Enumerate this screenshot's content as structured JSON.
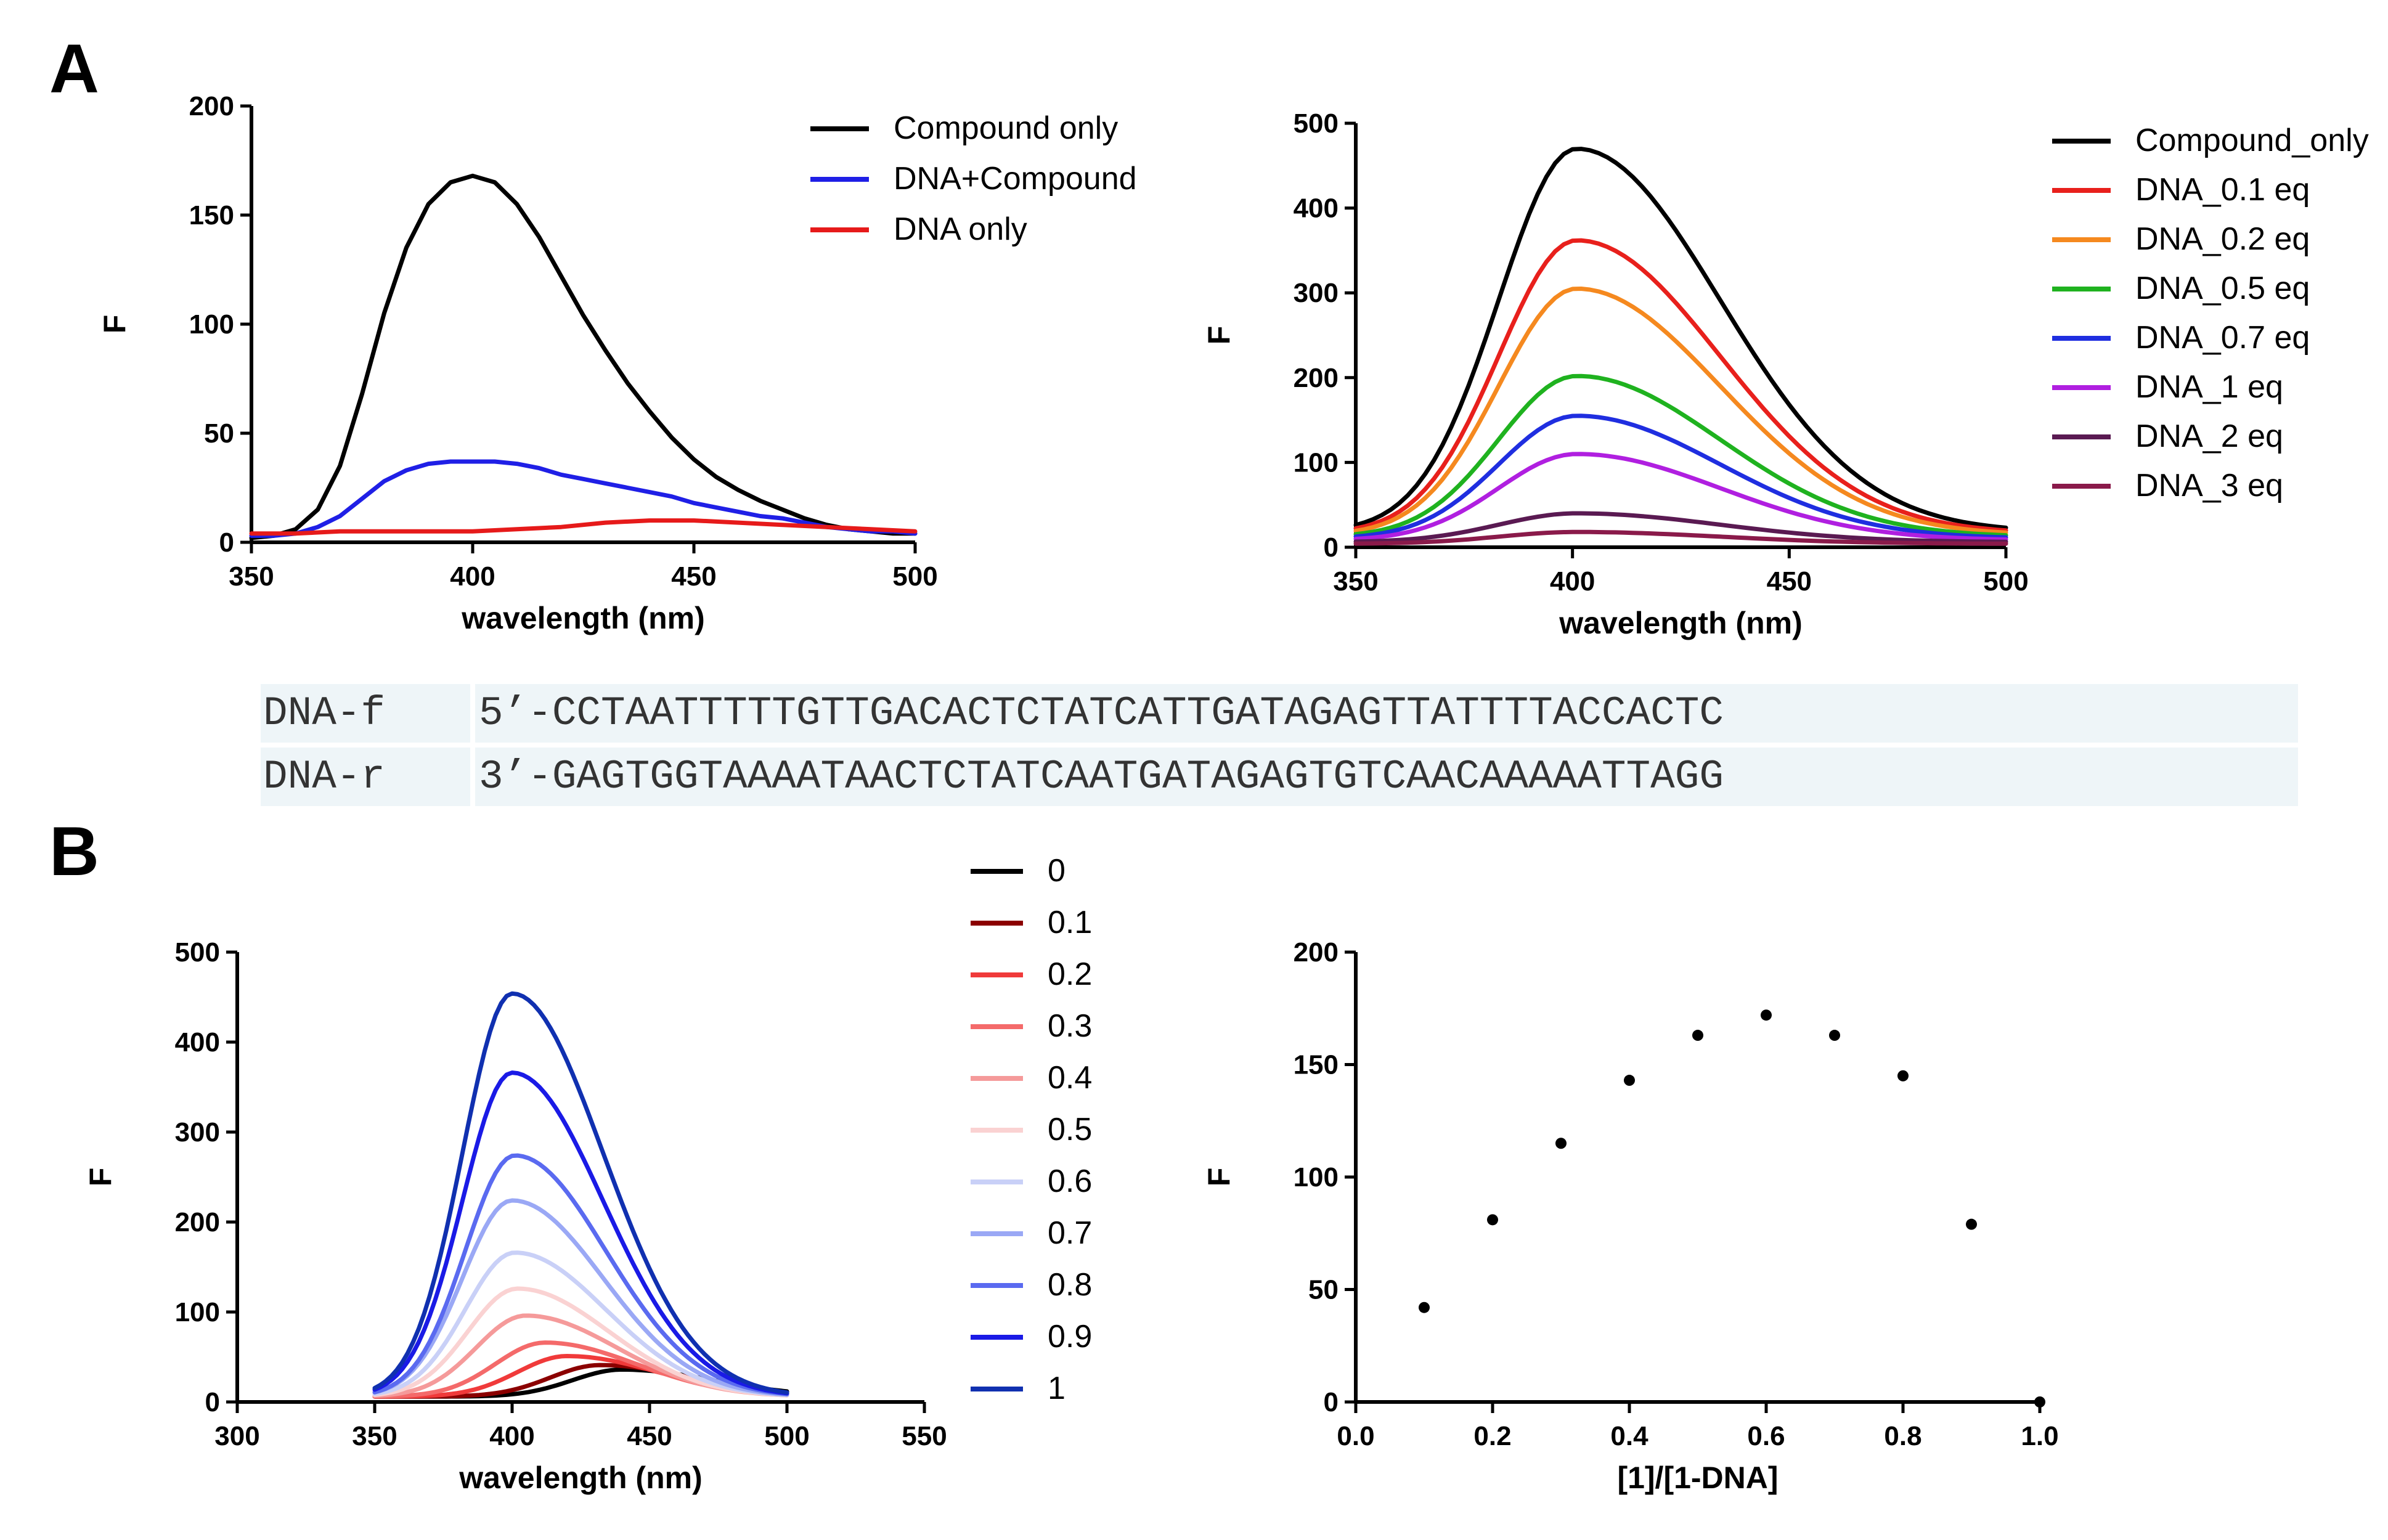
{
  "figure": {
    "panel_a_label": "A",
    "panel_b_label": "B"
  },
  "sequences": [
    {
      "name": "DNA-f",
      "seq": "5’-CCTAATTTTTGTTGACACTCTATCATTGATAGAGTTATTTTACCACTC"
    },
    {
      "name": "DNA-r",
      "seq": "3’-GAGTGGTAAAATAACTCTATCAATGATAGAGTGTCAACAAAAATTAGG"
    }
  ],
  "chart_data": [
    {
      "id": "A1",
      "type": "line",
      "title": "",
      "xlabel": "wavelength (nm)",
      "ylabel": "F",
      "xlim": [
        350,
        500
      ],
      "ylim": [
        0,
        200
      ],
      "xticks": [
        350,
        400,
        450,
        500
      ],
      "yticks": [
        0,
        50,
        100,
        150,
        200
      ],
      "legend_position": "top-right",
      "series": [
        {
          "name": "Compound only",
          "color": "#000000",
          "x": [
            350,
            355,
            360,
            365,
            370,
            375,
            380,
            385,
            390,
            395,
            400,
            405,
            410,
            415,
            420,
            425,
            430,
            435,
            440,
            445,
            450,
            455,
            460,
            465,
            470,
            475,
            480,
            485,
            490,
            495,
            500
          ],
          "y": [
            2,
            3,
            6,
            15,
            35,
            68,
            105,
            135,
            155,
            165,
            168,
            165,
            155,
            140,
            122,
            104,
            88,
            73,
            60,
            48,
            38,
            30,
            24,
            19,
            15,
            11,
            8,
            6,
            5,
            4,
            4
          ]
        },
        {
          "name": "DNA+Compound",
          "color": "#1f1fe6",
          "x": [
            350,
            355,
            360,
            365,
            370,
            375,
            380,
            385,
            390,
            395,
            400,
            405,
            410,
            415,
            420,
            425,
            430,
            435,
            440,
            445,
            450,
            455,
            460,
            465,
            470,
            475,
            480,
            485,
            490,
            495,
            500
          ],
          "y": [
            3,
            3,
            4,
            7,
            12,
            20,
            28,
            33,
            36,
            37,
            37,
            37,
            36,
            34,
            31,
            29,
            27,
            25,
            23,
            21,
            18,
            16,
            14,
            12,
            11,
            9,
            7,
            6,
            5,
            5,
            4
          ]
        },
        {
          "name": "DNA only",
          "color": "#e61a1a",
          "x": [
            350,
            360,
            370,
            380,
            390,
            400,
            410,
            420,
            430,
            440,
            450,
            460,
            470,
            480,
            490,
            500
          ],
          "y": [
            4,
            4,
            5,
            5,
            5,
            5,
            6,
            7,
            9,
            10,
            10,
            9,
            8,
            7,
            6,
            5
          ]
        }
      ]
    },
    {
      "id": "A2",
      "type": "line",
      "title": "",
      "xlabel": "wavelength (nm)",
      "ylabel": "F",
      "xlim": [
        350,
        500
      ],
      "ylim": [
        0,
        500
      ],
      "xticks": [
        350,
        400,
        450,
        500
      ],
      "yticks": [
        0,
        100,
        200,
        300,
        400,
        500
      ],
      "legend_position": "top-right",
      "peak_wavelength": 401,
      "peaks": [
        470,
        362,
        305,
        202,
        155,
        110,
        40,
        18
      ],
      "series": [
        {
          "name": "Compound_only",
          "color": "#000000"
        },
        {
          "name": "DNA_0.1 eq",
          "color": "#e8201c"
        },
        {
          "name": "DNA_0.2 eq",
          "color": "#f5891f"
        },
        {
          "name": "DNA_0.5 eq",
          "color": "#1fb21f"
        },
        {
          "name": "DNA_0.7 eq",
          "color": "#1f2ee0"
        },
        {
          "name": "DNA_1 eq",
          "color": "#b01fe0"
        },
        {
          "name": "DNA_2 eq",
          "color": "#5a1a52"
        },
        {
          "name": "DNA_3 eq",
          "color": "#8a1a4a"
        }
      ]
    },
    {
      "id": "B1",
      "type": "line",
      "title": "",
      "xlabel": "wavelength (nm)",
      "ylabel": "F",
      "xlim": [
        300,
        550
      ],
      "ylim": [
        0,
        500
      ],
      "xticks": [
        300,
        350,
        400,
        450,
        500,
        550
      ],
      "yticks": [
        0,
        100,
        200,
        300,
        400,
        500
      ],
      "legend_position": "top-right",
      "data_range": [
        350,
        500
      ],
      "series": [
        {
          "name": "0",
          "color": "#000000",
          "peak": 30,
          "center": 440
        },
        {
          "name": "0.1",
          "color": "#8b0000",
          "peak": 35,
          "center": 432
        },
        {
          "name": "0.2",
          "color": "#f03a3a",
          "peak": 45,
          "center": 420
        },
        {
          "name": "0.3",
          "color": "#f46a6a",
          "peak": 60,
          "center": 412
        },
        {
          "name": "0.4",
          "color": "#f59a9a",
          "peak": 90,
          "center": 405
        },
        {
          "name": "0.5",
          "color": "#fad2d2",
          "peak": 120,
          "center": 402
        },
        {
          "name": "0.6",
          "color": "#c9d0f7",
          "peak": 160,
          "center": 401
        },
        {
          "name": "0.7",
          "color": "#9aa8f5",
          "peak": 218,
          "center": 400
        },
        {
          "name": "0.8",
          "color": "#5a6af0",
          "peak": 268,
          "center": 401
        },
        {
          "name": "0.9",
          "color": "#1a1ae6",
          "peak": 360,
          "center": 400
        },
        {
          "name": "1",
          "color": "#1030b0",
          "peak": 448,
          "center": 400
        }
      ]
    },
    {
      "id": "B2",
      "type": "scatter",
      "title": "",
      "xlabel": "[1]/[1-DNA]",
      "ylabel": "F",
      "xlim": [
        0.0,
        1.0
      ],
      "ylim": [
        0,
        200
      ],
      "xticks": [
        "0.0",
        "0.2",
        "0.4",
        "0.6",
        "0.8",
        "1.0"
      ],
      "yticks": [
        0,
        50,
        100,
        150,
        200
      ],
      "x": [
        0.1,
        0.2,
        0.3,
        0.4,
        0.5,
        0.6,
        0.7,
        0.8,
        0.9,
        1.0
      ],
      "y": [
        42,
        81,
        115,
        143,
        163,
        172,
        163,
        145,
        79,
        0
      ]
    }
  ]
}
